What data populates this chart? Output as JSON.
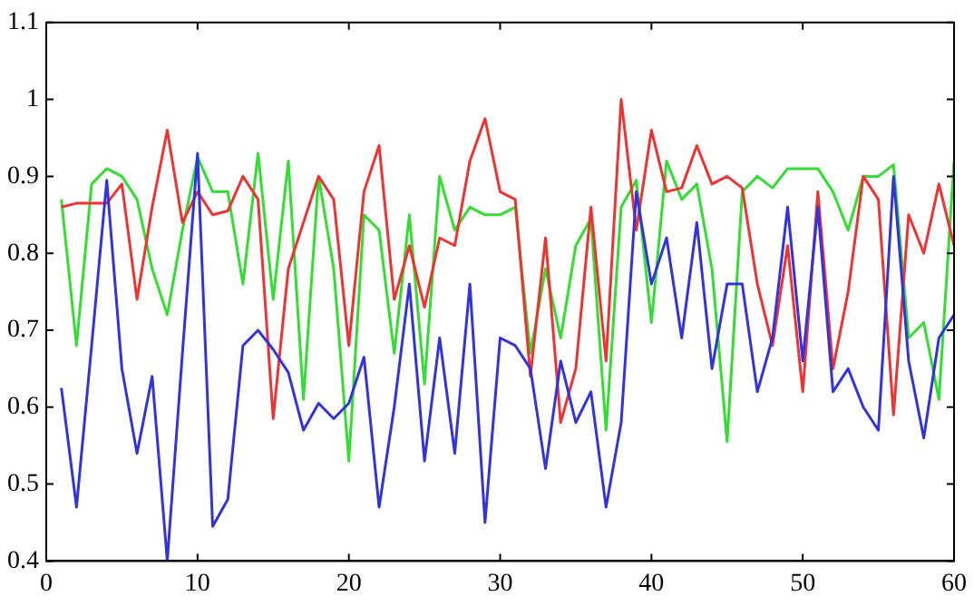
{
  "chart_data": {
    "type": "line",
    "x": [
      1,
      2,
      3,
      4,
      5,
      6,
      7,
      8,
      9,
      10,
      11,
      12,
      13,
      14,
      15,
      16,
      17,
      18,
      19,
      20,
      21,
      22,
      23,
      24,
      25,
      26,
      27,
      28,
      29,
      30,
      31,
      32,
      33,
      34,
      35,
      36,
      37,
      38,
      39,
      40,
      41,
      42,
      43,
      44,
      45,
      46,
      47,
      48,
      49,
      50,
      51,
      52,
      53,
      54,
      55,
      56,
      57,
      58,
      59,
      60
    ],
    "series": [
      {
        "color": "#3333dd",
        "values": [
          0.625,
          0.47,
          0.68,
          0.895,
          0.65,
          0.54,
          0.64,
          0.4,
          0.67,
          0.93,
          0.445,
          0.48,
          0.68,
          0.7,
          0.675,
          0.645,
          0.57,
          0.605,
          0.585,
          0.605,
          0.665,
          0.47,
          0.6,
          0.76,
          0.53,
          0.69,
          0.54,
          0.76,
          0.45,
          0.69,
          0.68,
          0.65,
          0.52,
          0.66,
          0.58,
          0.62,
          0.47,
          0.58,
          0.88,
          0.76,
          0.82,
          0.69,
          0.84,
          0.65,
          0.76,
          0.76,
          0.62,
          0.69,
          0.86,
          0.66,
          0.86,
          0.62,
          0.65,
          0.6,
          0.57,
          0.9,
          0.66,
          0.56,
          0.69,
          0.72
        ]
      },
      {
        "color": "#ee3333",
        "values": [
          0.86,
          0.865,
          0.865,
          0.865,
          0.89,
          0.74,
          0.86,
          0.96,
          0.84,
          0.88,
          0.85,
          0.855,
          0.9,
          0.87,
          0.585,
          0.78,
          0.84,
          0.9,
          0.87,
          0.68,
          0.88,
          0.94,
          0.74,
          0.81,
          0.73,
          0.82,
          0.81,
          0.92,
          0.975,
          0.88,
          0.87,
          0.64,
          0.82,
          0.58,
          0.65,
          0.86,
          0.66,
          1.0,
          0.83,
          0.96,
          0.88,
          0.885,
          0.94,
          0.89,
          0.9,
          0.885,
          0.76,
          0.68,
          0.81,
          0.62,
          0.88,
          0.65,
          0.75,
          0.9,
          0.87,
          0.59,
          0.85,
          0.8,
          0.89,
          0.81
        ]
      },
      {
        "color": "#33dd33",
        "values": [
          0.87,
          0.68,
          0.89,
          0.91,
          0.9,
          0.87,
          0.78,
          0.72,
          0.83,
          0.925,
          0.88,
          0.88,
          0.76,
          0.93,
          0.74,
          0.92,
          0.61,
          0.9,
          0.78,
          0.53,
          0.85,
          0.83,
          0.67,
          0.85,
          0.63,
          0.9,
          0.83,
          0.86,
          0.85,
          0.85,
          0.86,
          0.67,
          0.78,
          0.69,
          0.81,
          0.845,
          0.57,
          0.86,
          0.895,
          0.71,
          0.92,
          0.87,
          0.89,
          0.78,
          0.555,
          0.88,
          0.9,
          0.885,
          0.91,
          0.91,
          0.91,
          0.88,
          0.83,
          0.9,
          0.9,
          0.915,
          0.69,
          0.71,
          0.61,
          0.92
        ]
      }
    ],
    "xlim": [
      0,
      60
    ],
    "xticks": [
      0,
      10,
      20,
      30,
      40,
      50,
      60
    ],
    "ylim": [
      0.4,
      1.1
    ],
    "yticks": [
      0.4,
      0.5,
      0.6,
      0.7,
      0.8,
      0.9,
      1,
      1.1
    ],
    "grid": false,
    "legend": false,
    "marker": "none",
    "line_style": "solid"
  }
}
